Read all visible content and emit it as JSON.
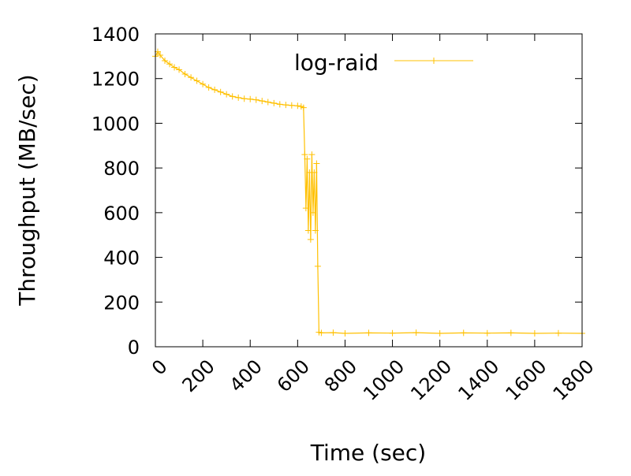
{
  "chart_data": {
    "type": "line",
    "title": "",
    "xlabel": "Time (sec)",
    "ylabel": "Throughput (MB/sec)",
    "xlim": [
      0,
      1800
    ],
    "ylim": [
      0,
      1400
    ],
    "x_ticks": [
      0,
      200,
      400,
      600,
      800,
      1000,
      1200,
      1400,
      1600,
      1800
    ],
    "y_ticks": [
      0,
      200,
      400,
      600,
      800,
      1000,
      1200,
      1400
    ],
    "x_tick_labels": [
      "0",
      "200",
      "400",
      "600",
      "800",
      "1000",
      "1200",
      "1400",
      "1600",
      "1800"
    ],
    "y_tick_labels": [
      "0",
      "200",
      "400",
      "600",
      "800",
      "1000",
      "1200",
      "1400"
    ],
    "grid": false,
    "legend_position": "top-center",
    "series": [
      {
        "name": "log-raid",
        "color": "#ffc000",
        "marker": "plus",
        "x": [
          0,
          10,
          20,
          40,
          60,
          80,
          100,
          125,
          150,
          175,
          200,
          225,
          250,
          275,
          300,
          325,
          350,
          375,
          400,
          425,
          450,
          475,
          500,
          525,
          550,
          575,
          600,
          615,
          625,
          630,
          635,
          640,
          645,
          650,
          655,
          660,
          665,
          670,
          675,
          680,
          685,
          690,
          700,
          750,
          800,
          900,
          1000,
          1100,
          1200,
          1300,
          1400,
          1500,
          1600,
          1700,
          1800
        ],
        "y": [
          1300,
          1320,
          1305,
          1280,
          1265,
          1250,
          1240,
          1220,
          1205,
          1190,
          1175,
          1160,
          1150,
          1140,
          1130,
          1120,
          1115,
          1110,
          1108,
          1105,
          1100,
          1095,
          1090,
          1085,
          1082,
          1080,
          1078,
          1075,
          1070,
          860,
          620,
          840,
          520,
          780,
          480,
          860,
          600,
          780,
          520,
          820,
          360,
          65,
          62,
          63,
          60,
          62,
          61,
          63,
          60,
          62,
          61,
          62,
          60,
          61,
          60
        ]
      }
    ]
  }
}
